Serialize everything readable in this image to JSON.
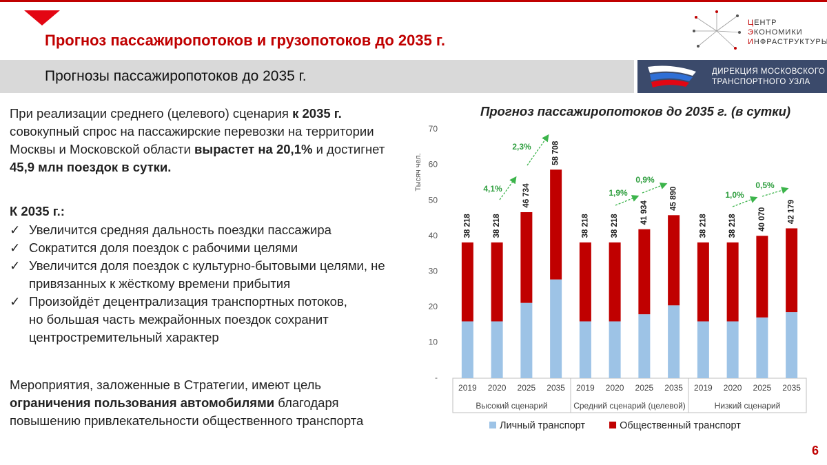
{
  "header": {
    "title": "Прогноз пассажиропотоков и грузопотоков до 2035 г.",
    "subtitle": "Прогнозы пассажиропотоков до 2035 г.",
    "logo_lines": [
      "ЦЕНТР",
      "ЭКОНОМИКИ",
      "ИНФРАСТРУКТУРЫ"
    ],
    "partner_lines": [
      "ДИРЕКЦИЯ МОСКОВСКОГО",
      "ТРАНСПОРТНОГО УЗЛА"
    ]
  },
  "intro": [
    "При реализации среднего (целевого) сценария ",
    "к 2035 г.",
    " совокупный спрос на пассажирские перевозки на территории Москвы и Московской области ",
    "вырастет на 20,1%",
    " и достигнет ",
    "45,9 млн поездок в сутки."
  ],
  "list_title": "К 2035 г.:",
  "list": [
    "Увеличится средняя дальность поездки пассажира",
    "Сократится доля поездок с рабочими целями",
    "Увеличится доля поездок с культурно-бытовыми целями, не привязанных к жёсткому времени прибытия",
    "Произойдёт децентрализация транспортных потоков, но большая часть межрайонных поездок сохранит центростремительный характер"
  ],
  "outro": [
    "Мероприятия, заложенные в Стратегии, имеют цель ",
    "ограничения пользования автомобилями",
    " благодаря повышению привлекательности общественного транспорта"
  ],
  "page_number": "6",
  "chart_data": {
    "type": "bar",
    "stacked": true,
    "title": "Прогноз пассажиропотоков до 2035 г. (в сутки)",
    "y_label": "Тысяч чел.",
    "categories": [
      "2019",
      "2020",
      "2025",
      "2035",
      "2019",
      "2020",
      "2025",
      "2035",
      "2019",
      "2020",
      "2025",
      "2035"
    ],
    "groups": [
      "Высокий сценарий",
      "Средний сценарий (целевой)",
      "Низкий сценарий"
    ],
    "series": [
      {
        "name": "Личный транспорт",
        "color": "#9dc3e6",
        "values": [
          16,
          16,
          21.2,
          27.8,
          16,
          16,
          18,
          20.5,
          16,
          16,
          17.1,
          18.6
        ]
      },
      {
        "name": "Общественный транспорт",
        "color": "#c00000",
        "values": [
          22.218,
          22.218,
          25.534,
          30.908,
          22.218,
          22.218,
          23.934,
          25.39,
          22.218,
          22.218,
          22.97,
          23.579
        ]
      }
    ],
    "totals": {
      "values": [
        38.218,
        38.218,
        46.734,
        58.708,
        38.218,
        38.218,
        41.934,
        45.89,
        38.218,
        38.218,
        40.07,
        42.179
      ],
      "value_labels": [
        "38 218",
        "38 218",
        "46 734",
        "58 708",
        "38 218",
        "38 218",
        "41 934",
        "45 890",
        "38 218",
        "38 218",
        "40 070",
        "42 179"
      ]
    },
    "annotations": [
      "4,1%",
      "2,3%",
      "1,9%",
      "0,9%",
      "1,0%",
      "0,5%"
    ],
    "ylim": [
      0,
      70
    ],
    "yticks": [
      {
        "value": 0,
        "label": "-"
      },
      10,
      20,
      30,
      40,
      50,
      60,
      70
    ],
    "grid": false,
    "legend": "bottom"
  }
}
